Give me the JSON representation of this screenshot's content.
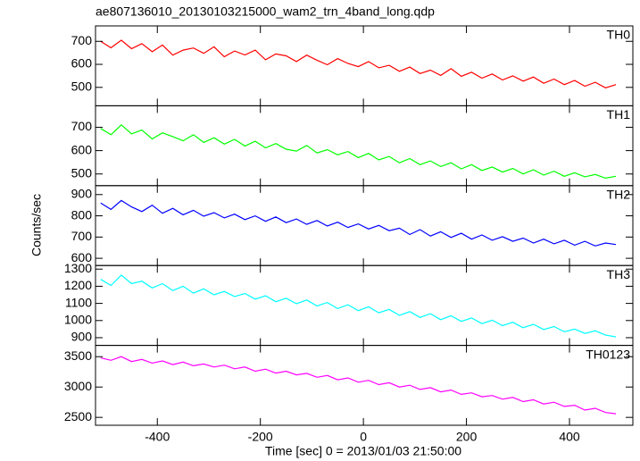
{
  "chart_data": {
    "type": "line",
    "title": "ae807136010_20130103215000_wam2_trn_4band_long.qdp",
    "xlabel": "Time [sec] 0 = 2013/01/03 21:50:00",
    "ylabel": "Counts/sec",
    "x": [
      -510,
      -490,
      -470,
      -450,
      -430,
      -410,
      -390,
      -370,
      -350,
      -330,
      -310,
      -290,
      -270,
      -250,
      -230,
      -210,
      -190,
      -170,
      -150,
      -130,
      -110,
      -90,
      -70,
      -50,
      -30,
      -10,
      10,
      30,
      50,
      70,
      90,
      110,
      130,
      150,
      170,
      190,
      210,
      230,
      250,
      270,
      290,
      310,
      330,
      350,
      370,
      390,
      410,
      430,
      450,
      470,
      490
    ],
    "xlim": [
      -520,
      523
    ],
    "xticks": [
      -400,
      -200,
      0,
      200,
      400
    ],
    "panels": [
      {
        "name": "TH0",
        "color": "#ff0000",
        "ylim": [
          420,
          767
        ],
        "yticks": [
          500,
          600,
          700
        ],
        "values": [
          700,
          672,
          705,
          668,
          690,
          655,
          684,
          640,
          662,
          671,
          648,
          676,
          633,
          658,
          641,
          662,
          620,
          645,
          637,
          612,
          640,
          618,
          598,
          625,
          604,
          590,
          612,
          585,
          596,
          570,
          588,
          560,
          575,
          552,
          581,
          548,
          566,
          540,
          558,
          532,
          550,
          527,
          545,
          518,
          536,
          512,
          530,
          505,
          522,
          498,
          512
        ]
      },
      {
        "name": "TH1",
        "color": "#00ff00",
        "ylim": [
          450,
          792
        ],
        "yticks": [
          500,
          600,
          700
        ],
        "values": [
          695,
          668,
          710,
          672,
          688,
          650,
          676,
          660,
          642,
          668,
          635,
          655,
          628,
          648,
          620,
          640,
          612,
          630,
          606,
          598,
          622,
          590,
          604,
          582,
          596,
          570,
          588,
          560,
          575,
          548,
          566,
          540,
          556,
          532,
          548,
          522,
          540,
          515,
          530,
          508,
          524,
          500,
          518,
          495,
          512,
          490,
          505,
          488,
          498,
          482,
          490
        ]
      },
      {
        "name": "TH2",
        "color": "#0000ff",
        "ylim": [
          566,
          942
        ],
        "yticks": [
          600,
          700,
          800,
          900
        ],
        "values": [
          860,
          830,
          872,
          842,
          820,
          850,
          812,
          835,
          805,
          826,
          798,
          815,
          790,
          808,
          782,
          800,
          774,
          795,
          768,
          785,
          760,
          778,
          752,
          770,
          745,
          762,
          738,
          755,
          730,
          742,
          712,
          735,
          705,
          725,
          698,
          718,
          690,
          710,
          685,
          702,
          680,
          695,
          672,
          690,
          668,
          685,
          662,
          680,
          658,
          672,
          665
        ]
      },
      {
        "name": "TH3",
        "color": "#00ffff",
        "ylim": [
          855,
          1321
        ],
        "yticks": [
          900,
          1000,
          1100,
          1200,
          1300
        ],
        "values": [
          1240,
          1205,
          1265,
          1215,
          1230,
          1190,
          1215,
          1175,
          1200,
          1160,
          1185,
          1150,
          1170,
          1140,
          1158,
          1125,
          1145,
          1110,
          1130,
          1098,
          1120,
          1085,
          1105,
          1070,
          1092,
          1058,
          1080,
          1045,
          1065,
          1030,
          1052,
          1018,
          1040,
          1005,
          1028,
          995,
          1015,
          982,
          1002,
          970,
          990,
          958,
          978,
          948,
          965,
          935,
          950,
          925,
          940,
          915,
          905
        ]
      },
      {
        "name": "TH0123",
        "color": "#ff00ff",
        "ylim": [
          2370,
          3686
        ],
        "yticks": [
          2500,
          3000,
          3500
        ],
        "values": [
          3480,
          3440,
          3500,
          3420,
          3455,
          3395,
          3430,
          3370,
          3410,
          3350,
          3380,
          3330,
          3360,
          3300,
          3330,
          3260,
          3295,
          3230,
          3260,
          3200,
          3225,
          3160,
          3190,
          3120,
          3150,
          3080,
          3110,
          3040,
          3070,
          3000,
          3030,
          2960,
          2990,
          2920,
          2950,
          2880,
          2905,
          2840,
          2860,
          2800,
          2830,
          2760,
          2790,
          2720,
          2750,
          2680,
          2700,
          2620,
          2650,
          2580,
          2560
        ]
      }
    ]
  }
}
